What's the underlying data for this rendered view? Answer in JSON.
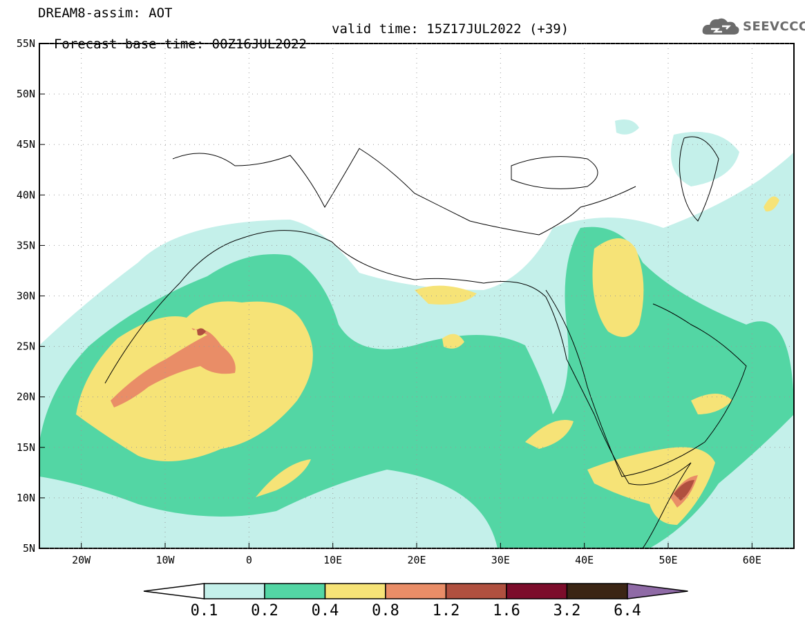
{
  "header": {
    "line1": "DREAM8-assim: AOT",
    "base_time": "Forecast base time: 00Z16JUL2022",
    "valid_time": "valid time: 15Z17JUL2022 (+39)"
  },
  "logo": {
    "text": "SEEVCCC",
    "icon": "cloud-icon"
  },
  "map": {
    "lon_range": [
      -25,
      65
    ],
    "lat_range": [
      5,
      55
    ],
    "lat_ticks": [
      "55N",
      "50N",
      "45N",
      "40N",
      "35N",
      "30N",
      "25N",
      "20N",
      "15N",
      "10N",
      "5N"
    ],
    "lon_ticks": [
      "20W",
      "10W",
      "0",
      "10E",
      "20E",
      "30E",
      "40E",
      "50E",
      "60E"
    ]
  },
  "colorbar": {
    "labels": [
      "0.1",
      "0.2",
      "0.4",
      "0.8",
      "1.2",
      "1.6",
      "3.2",
      "6.4"
    ],
    "colors": [
      "#ffffff",
      "#c4f0ea",
      "#53d6a4",
      "#f6e377",
      "#e98d67",
      "#b0503f",
      "#7c0d2b",
      "#3b2514",
      "#8f6aa6"
    ]
  }
}
